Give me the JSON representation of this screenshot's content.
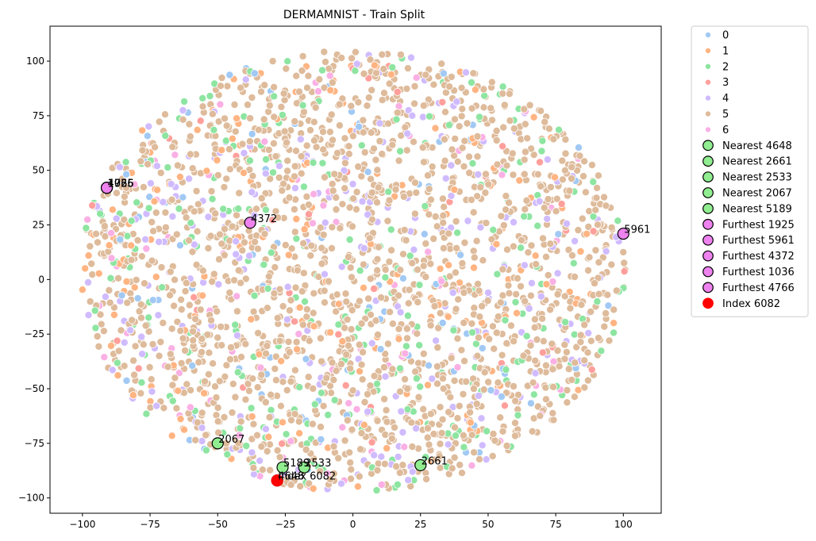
{
  "chart_data": {
    "type": "scatter",
    "title": "DERMAMNIST - Train Split",
    "xlabel": "",
    "ylabel": "",
    "xlim": [
      -112,
      114
    ],
    "ylim": [
      -107,
      116
    ],
    "x_ticks": [
      -100,
      -75,
      -50,
      -25,
      0,
      25,
      50,
      75,
      100
    ],
    "y_ticks": [
      -100,
      -75,
      -50,
      -25,
      0,
      25,
      50,
      75,
      100
    ],
    "grid": false,
    "legend_position": "outside-right",
    "class_colors": {
      "0": "#a1c9f4",
      "1": "#ffb482",
      "2": "#8de5a1",
      "3": "#ff9f9b",
      "4": "#d0bbff",
      "5": "#debb9b",
      "6": "#fab0e4"
    },
    "class_proportions": {
      "0": 0.03,
      "1": 0.06,
      "2": 0.09,
      "3": 0.01,
      "4": 0.09,
      "5": 0.69,
      "6": 0.03
    },
    "legend_entries": [
      {
        "label": "0",
        "kind": "class",
        "color": "#a1c9f4"
      },
      {
        "label": "1",
        "kind": "class",
        "color": "#ffb482"
      },
      {
        "label": "2",
        "kind": "class",
        "color": "#8de5a1"
      },
      {
        "label": "3",
        "kind": "class",
        "color": "#ff9f9b"
      },
      {
        "label": "4",
        "kind": "class",
        "color": "#d0bbff"
      },
      {
        "label": "5",
        "kind": "class",
        "color": "#debb9b"
      },
      {
        "label": "6",
        "kind": "class",
        "color": "#fab0e4"
      },
      {
        "label": "Nearest 4648",
        "kind": "nearest",
        "color": "#90ee90"
      },
      {
        "label": "Nearest 2661",
        "kind": "nearest",
        "color": "#90ee90"
      },
      {
        "label": "Nearest 2533",
        "kind": "nearest",
        "color": "#90ee90"
      },
      {
        "label": "Nearest 2067",
        "kind": "nearest",
        "color": "#90ee90"
      },
      {
        "label": "Nearest 5189",
        "kind": "nearest",
        "color": "#90ee90"
      },
      {
        "label": "Furthest 1925",
        "kind": "furthest",
        "color": "#ee82ee"
      },
      {
        "label": "Furthest 5961",
        "kind": "furthest",
        "color": "#ee82ee"
      },
      {
        "label": "Furthest 4372",
        "kind": "furthest",
        "color": "#ee82ee"
      },
      {
        "label": "Furthest 1036",
        "kind": "furthest",
        "color": "#ee82ee"
      },
      {
        "label": "Furthest 4766",
        "kind": "furthest",
        "color": "#ee82ee"
      },
      {
        "label": "Index 6082",
        "kind": "index",
        "color": "#ff0000"
      }
    ],
    "highlight_points": [
      {
        "label": "4648",
        "kind": "nearest",
        "x": -28,
        "y": -92
      },
      {
        "label": "2661",
        "kind": "nearest",
        "x": 25,
        "y": -85
      },
      {
        "label": "2533",
        "kind": "nearest",
        "x": -18,
        "y": -86
      },
      {
        "label": "2067",
        "kind": "nearest",
        "x": -50,
        "y": -75
      },
      {
        "label": "5189",
        "kind": "nearest",
        "x": -26,
        "y": -86
      },
      {
        "label": "1925",
        "kind": "furthest",
        "x": -91,
        "y": 42
      },
      {
        "label": "5961",
        "kind": "furthest",
        "x": 100,
        "y": 21
      },
      {
        "label": "4372",
        "kind": "furthest",
        "x": -38,
        "y": 26
      },
      {
        "label": "1036",
        "kind": "furthest",
        "x": -91,
        "y": 42
      },
      {
        "label": "4766",
        "kind": "furthest",
        "x": -91,
        "y": 42
      },
      {
        "label": "Index 6082",
        "kind": "index",
        "x": -28,
        "y": -92
      }
    ]
  }
}
